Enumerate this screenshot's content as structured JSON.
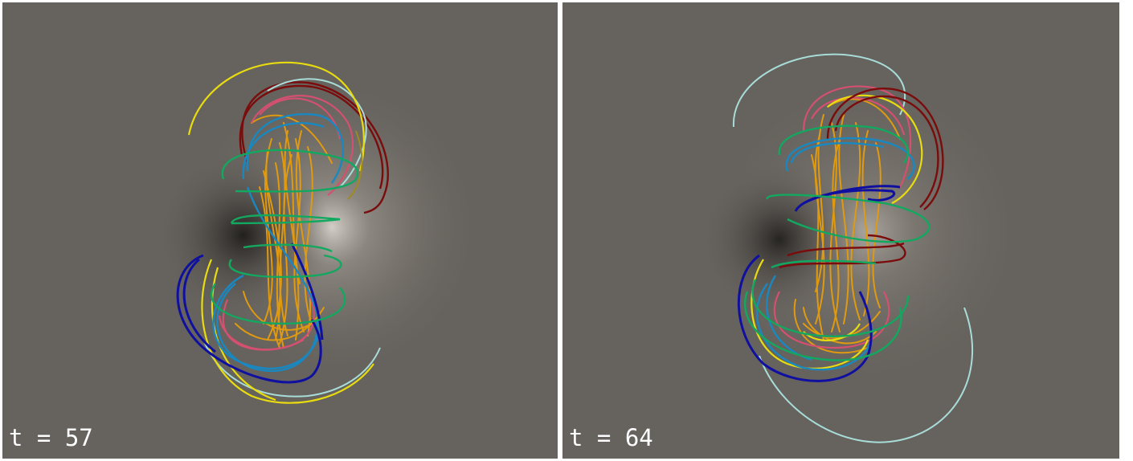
{
  "panels": [
    {
      "label": "t = 57"
    },
    {
      "label": "t = 64"
    }
  ],
  "colors": {
    "background": "#66625d",
    "highlight": "#d8d4cc",
    "shadow": "#1e1c1a",
    "orange": "#e09a10",
    "yellow": "#e8dc10",
    "dark_red": "#7a0c0c",
    "pink": "#d45070",
    "blue": "#1a88c0",
    "dark_blue": "#1010a0",
    "green": "#12a860",
    "light_cyan": "#a8dcd8",
    "olive": "#a08a20"
  }
}
